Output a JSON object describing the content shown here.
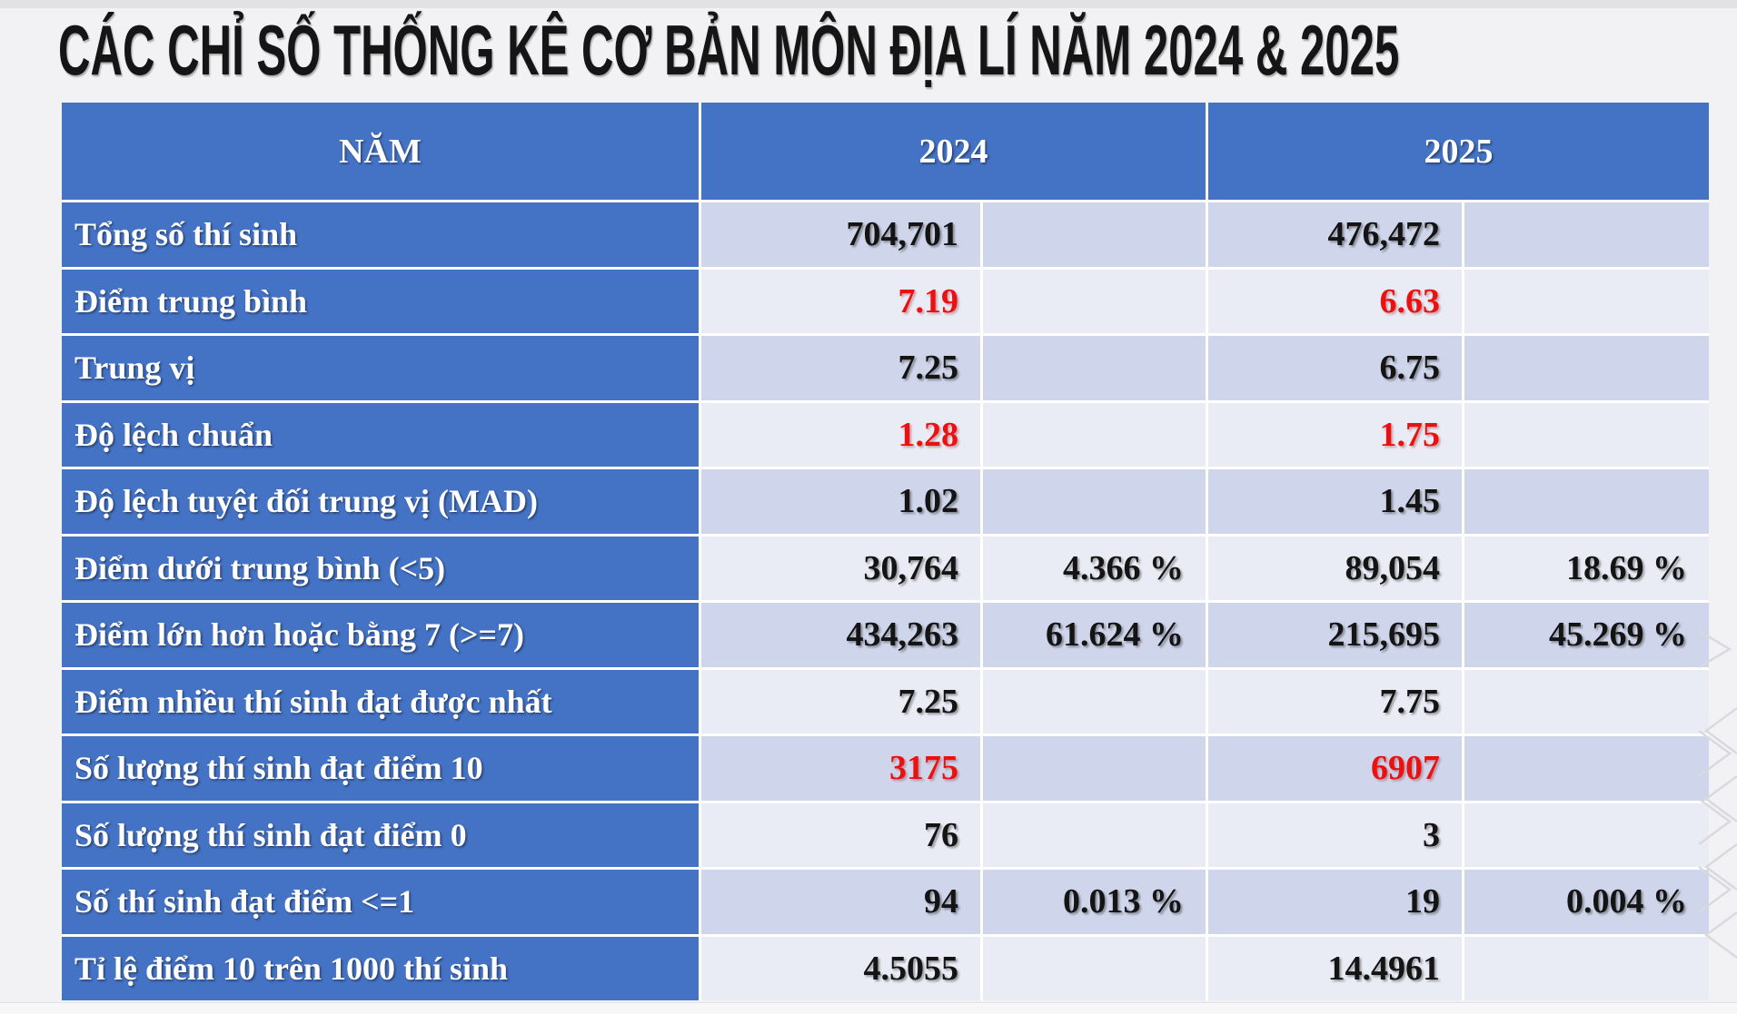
{
  "page": {
    "title": "CÁC CHỈ SỐ THỐNG KÊ CƠ BẢN MÔN ĐỊA LÍ NĂM 2024 & 2025"
  },
  "colors": {
    "header_blue": "#4472C4",
    "band_dark": "#CFD5EA",
    "band_light": "#E9EBF5",
    "highlight_red": "#EC1111",
    "page_background": "#F2F2F4"
  },
  "table": {
    "header": {
      "col_label": "NĂM",
      "col_2024": "2024",
      "col_2025": "2025"
    },
    "rows": [
      {
        "label": "Tổng số thí sinh",
        "v2024": "704,701",
        "p2024": "",
        "v2025": "476,472",
        "p2025": "",
        "highlight": false
      },
      {
        "label": "Điểm trung bình",
        "v2024": "7.19",
        "p2024": "",
        "v2025": "6.63",
        "p2025": "",
        "highlight": true
      },
      {
        "label": "Trung vị",
        "v2024": "7.25",
        "p2024": "",
        "v2025": "6.75",
        "p2025": "",
        "highlight": false
      },
      {
        "label": "Độ lệch chuẩn",
        "v2024": "1.28",
        "p2024": "",
        "v2025": "1.75",
        "p2025": "",
        "highlight": true
      },
      {
        "label": "Độ lệch tuyệt đối trung vị (MAD)",
        "v2024": "1.02",
        "p2024": "",
        "v2025": "1.45",
        "p2025": "",
        "highlight": false
      },
      {
        "label": "Điểm dưới trung bình (<5)",
        "v2024": "30,764",
        "p2024": "4.366 %",
        "v2025": "89,054",
        "p2025": "18.69 %",
        "highlight": false
      },
      {
        "label": "Điểm lớn hơn hoặc bằng 7 (>=7)",
        "v2024": "434,263",
        "p2024": "61.624 %",
        "v2025": "215,695",
        "p2025": "45.269 %",
        "highlight": false
      },
      {
        "label": "Điểm nhiều thí sinh đạt được nhất",
        "v2024": "7.25",
        "p2024": "",
        "v2025": "7.75",
        "p2025": "",
        "highlight": false
      },
      {
        "label": "Số lượng thí sinh đạt điểm 10",
        "v2024": "3175",
        "p2024": "",
        "v2025": "6907",
        "p2025": "",
        "highlight": true
      },
      {
        "label": "Số lượng thí sinh đạt điểm 0",
        "v2024": "76",
        "p2024": "",
        "v2025": "3",
        "p2025": "",
        "highlight": false
      },
      {
        "label": "Số thí sinh đạt điểm <=1",
        "v2024": "94",
        "p2024": "0.013 %",
        "v2025": "19",
        "p2025": "0.004 %",
        "highlight": false
      },
      {
        "label": "Tỉ lệ điểm 10 trên 1000 thí sinh",
        "v2024": "4.5055",
        "p2024": "",
        "v2025": "14.4961",
        "p2025": "",
        "highlight": false
      }
    ]
  },
  "chart_data": {
    "type": "table",
    "title": "CÁC CHỈ SỐ THỐNG KÊ CƠ BẢN MÔN ĐỊA LÍ NĂM 2024 & 2025",
    "columns": [
      "NĂM",
      "2024",
      "2024 %",
      "2025",
      "2025 %"
    ],
    "rows": [
      [
        "Tổng số thí sinh",
        "704,701",
        "",
        "476,472",
        ""
      ],
      [
        "Điểm trung bình",
        "7.19",
        "",
        "6.63",
        ""
      ],
      [
        "Trung vị",
        "7.25",
        "",
        "6.75",
        ""
      ],
      [
        "Độ lệch chuẩn",
        "1.28",
        "",
        "1.75",
        ""
      ],
      [
        "Độ lệch tuyệt đối trung vị (MAD)",
        "1.02",
        "",
        "1.45",
        ""
      ],
      [
        "Điểm dưới trung bình (<5)",
        "30,764",
        "4.366 %",
        "89,054",
        "18.69 %"
      ],
      [
        "Điểm lớn hơn hoặc bằng 7 (>=7)",
        "434,263",
        "61.624 %",
        "215,695",
        "45.269 %"
      ],
      [
        "Điểm nhiều thí sinh đạt được nhất",
        "7.25",
        "",
        "7.75",
        ""
      ],
      [
        "Số lượng thí sinh đạt điểm 10",
        "3175",
        "",
        "6907",
        ""
      ],
      [
        "Số lượng thí sinh đạt điểm 0",
        "76",
        "",
        "3",
        ""
      ],
      [
        "Số thí sinh đạt điểm <=1",
        "94",
        "0.013 %",
        "19",
        "0.004 %"
      ],
      [
        "Tỉ lệ điểm 10 trên 1000 thí sinh",
        "4.5055",
        "",
        "14.4961",
        ""
      ]
    ]
  }
}
